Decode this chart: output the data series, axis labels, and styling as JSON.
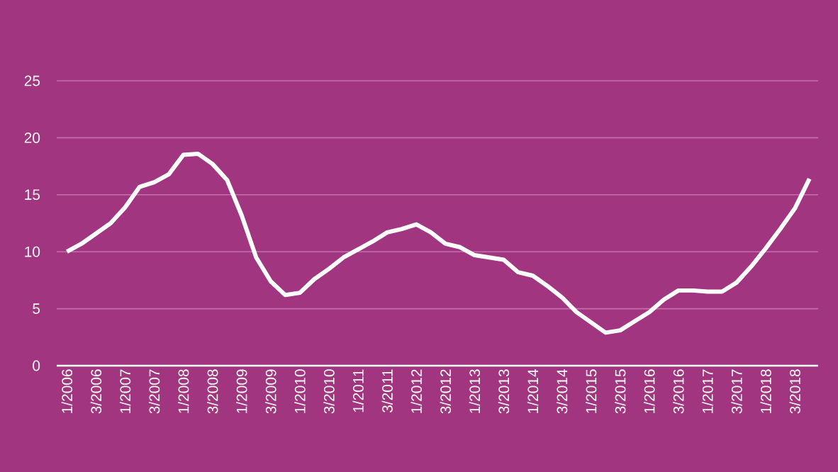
{
  "chart_data": {
    "type": "line",
    "categories": [
      "1/2006",
      null,
      "3/2006",
      null,
      "1/2007",
      null,
      "3/2007",
      null,
      "1/2008",
      null,
      "3/2008",
      null,
      "1/2009",
      null,
      "3/2009",
      null,
      "1/2010",
      null,
      "3/2010",
      null,
      "1/2011",
      null,
      "3/2011",
      null,
      "1/2012",
      null,
      "3/2012",
      null,
      "1/2013",
      null,
      "3/2013",
      null,
      "1/2014",
      null,
      "3/2014",
      null,
      "1/2015",
      null,
      "3/2015",
      null,
      "1/2016",
      null,
      "3/2016",
      null,
      "1/2017",
      null,
      "3/2017",
      null,
      "1/2018",
      null,
      "3/2018",
      null
    ],
    "series": [
      {
        "color": "#ffffff",
        "values": [
          10.0,
          10.7,
          11.6,
          12.5,
          13.9,
          15.7,
          16.1,
          16.8,
          18.5,
          18.6,
          17.7,
          16.3,
          13.2,
          9.5,
          7.4,
          6.2,
          6.4,
          7.6,
          8.5,
          9.5,
          10.2,
          10.9,
          11.7,
          12.0,
          12.4,
          11.7,
          10.7,
          10.4,
          9.7,
          9.5,
          9.3,
          8.2,
          7.9,
          7.0,
          6.0,
          4.7,
          3.8,
          2.9,
          3.1,
          3.9,
          4.7,
          5.8,
          6.6,
          6.6,
          6.5,
          6.5,
          7.3,
          8.7,
          10.3,
          12.0,
          13.8,
          16.4
        ]
      }
    ],
    "ylim": [
      0,
      25
    ],
    "yticks": [
      0,
      5,
      10,
      15,
      20,
      25
    ],
    "grid": "y",
    "marker": "none",
    "line_style": "solid"
  }
}
